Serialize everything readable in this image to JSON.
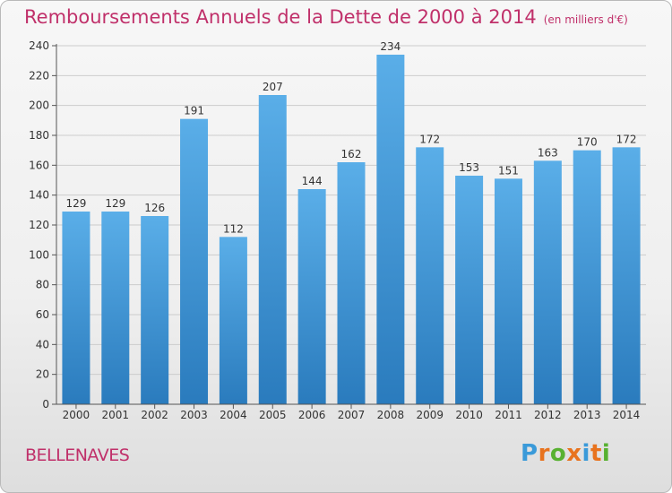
{
  "header": {
    "title": "Remboursements Annuels de la Dette de 2000 à 2014",
    "unit": "(en milliers d'€)"
  },
  "footer": {
    "commune": "BELLENAVES",
    "logo": {
      "letters": [
        "P",
        "r",
        "o",
        "x",
        "i",
        "t",
        "i"
      ],
      "colors": [
        "#3a9ad9",
        "#e8731e",
        "#58b131",
        "#e8731e",
        "#3a9ad9",
        "#e8731e",
        "#58b131"
      ]
    }
  },
  "chart_data": {
    "type": "bar",
    "title": "Remboursements Annuels de la Dette de 2000 à 2014",
    "subtitle": "(en milliers d'€)",
    "xlabel": "",
    "ylabel": "",
    "categories": [
      "2000",
      "2001",
      "2002",
      "2003",
      "2004",
      "2005",
      "2006",
      "2007",
      "2008",
      "2009",
      "2010",
      "2011",
      "2012",
      "2013",
      "2014"
    ],
    "values": [
      129,
      129,
      126,
      191,
      112,
      207,
      144,
      162,
      234,
      172,
      153,
      151,
      163,
      170,
      172
    ],
    "ylim": [
      0,
      240
    ],
    "yticks": [
      0,
      20,
      40,
      60,
      80,
      100,
      120,
      140,
      160,
      180,
      200,
      220,
      240
    ],
    "grid": true,
    "legend": "none",
    "colors": {
      "bar_top": "#5aaee8",
      "bar_bottom": "#2a7bbd",
      "grid": "#cccccc",
      "label": "#333333"
    }
  }
}
